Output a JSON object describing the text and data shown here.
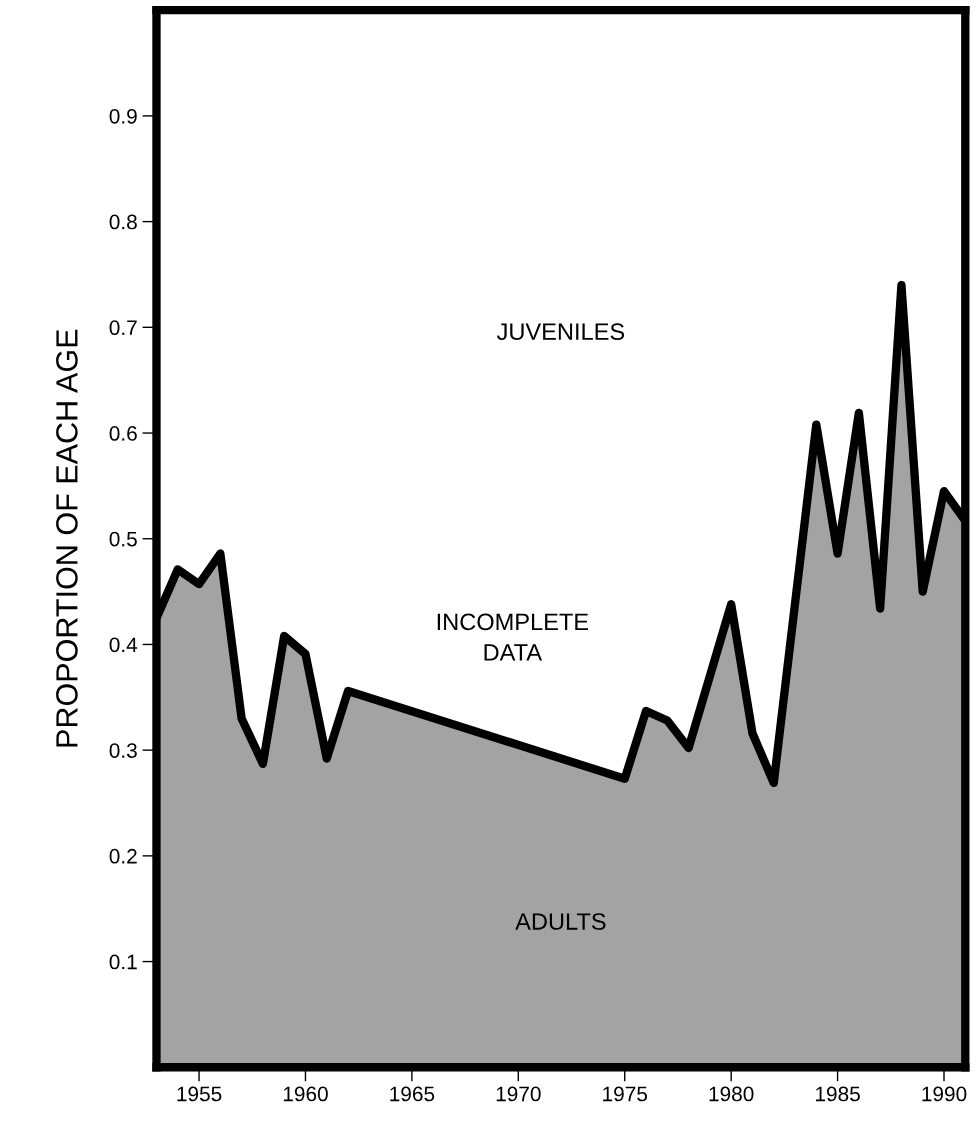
{
  "chart_data": {
    "type": "area",
    "ylabel": "PROPORTION OF EACH AGE",
    "x": [
      1953,
      1954,
      1955,
      1956,
      1957,
      1958,
      1959,
      1960,
      1961,
      1962,
      1975,
      1976,
      1977,
      1978,
      1980,
      1981,
      1982,
      1984,
      1985,
      1986,
      1987,
      1988,
      1989,
      1990,
      1991
    ],
    "series": [
      {
        "color": "#a3a3a3",
        "values": [
          0.425,
          0.471,
          0.457,
          0.486,
          0.33,
          0.287,
          0.408,
          0.391,
          0.292,
          0.356,
          0.273,
          0.337,
          0.328,
          0.302,
          0.438,
          0.316,
          0.269,
          0.608,
          0.486,
          0.619,
          0.434,
          0.74,
          0.45,
          0.545,
          0.517
        ]
      }
    ],
    "xlim": [
      1953,
      1991
    ],
    "ylim": [
      0,
      1
    ],
    "xticks": [
      1955,
      1960,
      1965,
      1970,
      1975,
      1980,
      1985,
      1990
    ],
    "yticks": [
      0.1,
      0.2,
      0.3,
      0.4,
      0.5,
      0.6,
      0.7,
      0.8,
      0.9
    ],
    "grid": false,
    "marker": "none",
    "line_style": "solid",
    "annotations": [
      "JUVENILES",
      "INCOMPLETE\nDATA",
      "ADULTS"
    ]
  }
}
